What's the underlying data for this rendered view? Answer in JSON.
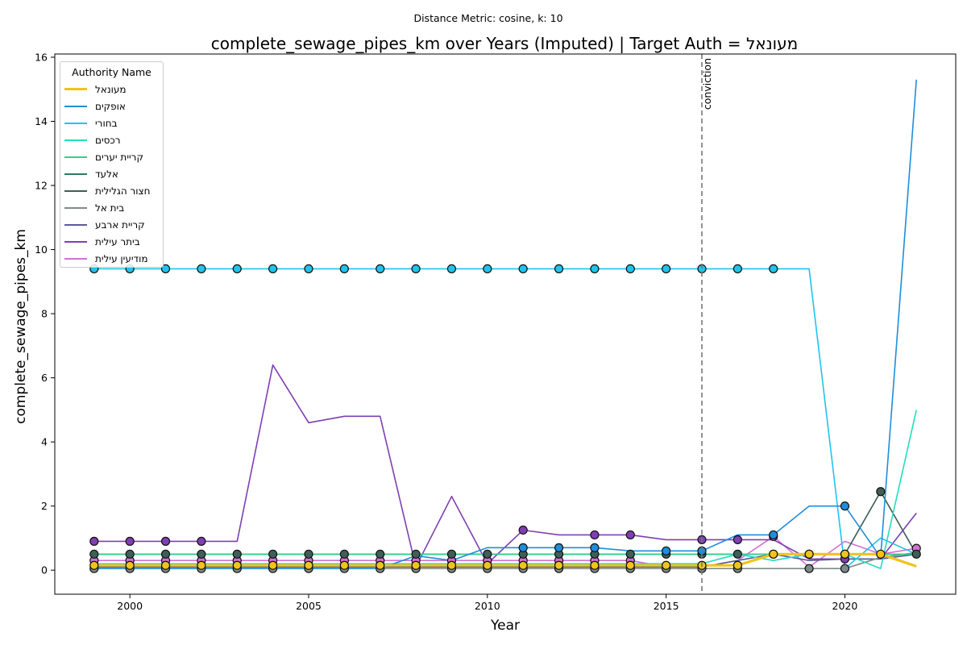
{
  "chart_data": {
    "type": "line",
    "suptitle": "Distance Metric: cosine, k: 10",
    "title": "complete_sewage_pipes_km over Years (Imputed) | Target Auth = מעונאל",
    "xlabel": "Year",
    "ylabel": "complete_sewage_pipes_km",
    "xlim": [
      1997.9,
      2023.1
    ],
    "ylim": [
      -0.75,
      16.1
    ],
    "xticks": [
      2000,
      2005,
      2010,
      2015,
      2020
    ],
    "yticks": [
      0,
      2,
      4,
      6,
      8,
      10,
      12,
      14,
      16
    ],
    "grid": false,
    "legend": {
      "title": "Authority Name",
      "placement": "upper-left"
    },
    "vline": {
      "x": 2016,
      "label": "conviction",
      "color": "#777777"
    },
    "x": [
      1999,
      2000,
      2001,
      2002,
      2003,
      2004,
      2005,
      2006,
      2007,
      2008,
      2009,
      2010,
      2011,
      2012,
      2013,
      2014,
      2015,
      2016,
      2017,
      2018,
      2019,
      2020,
      2021,
      2022
    ],
    "series": [
      {
        "name": "מעונאל",
        "color": "#f0c419",
        "width": 3.2,
        "values": [
          0.15,
          0.15,
          0.15,
          0.15,
          0.15,
          0.15,
          0.15,
          0.15,
          0.15,
          0.15,
          0.15,
          0.15,
          0.15,
          0.15,
          0.15,
          0.15,
          0.15,
          0.15,
          0.15,
          0.5,
          0.5,
          0.5,
          0.5,
          0.12
        ],
        "marked": [
          1999,
          2000,
          2001,
          2002,
          2003,
          2004,
          2005,
          2006,
          2007,
          2008,
          2009,
          2010,
          2011,
          2012,
          2013,
          2014,
          2015,
          2016,
          2017,
          2018,
          2019,
          2020,
          2021
        ]
      },
      {
        "name": "אופקים",
        "color": "#1f8ddb",
        "width": 1.6,
        "values": [
          0.05,
          0.05,
          0.05,
          0.05,
          0.05,
          0.05,
          0.05,
          0.05,
          0.05,
          0.45,
          0.3,
          0.7,
          0.7,
          0.7,
          0.7,
          0.6,
          0.6,
          0.6,
          1.1,
          1.1,
          2.0,
          2.0,
          0.4,
          15.3
        ],
        "marked": [
          2011,
          2012,
          2013,
          2015,
          2016,
          2018,
          2020
        ]
      },
      {
        "name": "בחורי",
        "color": "#1fc4ee",
        "width": 1.6,
        "values": [
          9.4,
          9.4,
          9.4,
          9.4,
          9.4,
          9.4,
          9.4,
          9.4,
          9.4,
          9.4,
          9.4,
          9.4,
          9.4,
          9.4,
          9.4,
          9.4,
          9.4,
          9.4,
          9.4,
          9.4,
          9.4,
          0.05,
          1.0,
          0.5
        ],
        "marked": [
          1999,
          2000,
          2001,
          2002,
          2003,
          2004,
          2005,
          2006,
          2007,
          2008,
          2009,
          2010,
          2011,
          2012,
          2013,
          2014,
          2015,
          2016,
          2017,
          2018
        ]
      },
      {
        "name": "רכסים",
        "color": "#22ddc0",
        "width": 1.6,
        "values": [
          0.2,
          0.2,
          0.2,
          0.2,
          0.2,
          0.2,
          0.2,
          0.2,
          0.2,
          0.2,
          0.2,
          0.2,
          0.2,
          0.2,
          0.2,
          0.2,
          0.2,
          0.2,
          0.5,
          0.3,
          0.5,
          0.5,
          0.05,
          5.0
        ],
        "marked": []
      },
      {
        "name": "קריית יערים",
        "color": "#2ed18c",
        "width": 1.6,
        "values": [
          0.5,
          0.5,
          0.5,
          0.5,
          0.5,
          0.5,
          0.5,
          0.5,
          0.5,
          0.5,
          0.5,
          0.5,
          0.5,
          0.5,
          0.5,
          0.5,
          0.5,
          0.5,
          0.5,
          0.5,
          0.5,
          0.5,
          0.5,
          0.5
        ],
        "marked": []
      },
      {
        "name": "אלעד",
        "color": "#2a7d5e",
        "width": 1.6,
        "values": [
          0.5,
          0.5,
          0.5,
          0.5,
          0.5,
          0.5,
          0.5,
          0.5,
          0.5,
          0.5,
          0.5,
          0.5,
          0.5,
          0.5,
          0.5,
          0.5,
          0.5,
          0.5,
          0.5,
          0.5,
          0.5,
          0.5,
          0.5,
          0.5
        ],
        "marked": []
      },
      {
        "name": "חצור הגלילית",
        "color": "#3e5f57",
        "width": 1.6,
        "values": [
          0.5,
          0.5,
          0.5,
          0.5,
          0.5,
          0.5,
          0.5,
          0.5,
          0.5,
          0.5,
          0.5,
          0.5,
          0.5,
          0.5,
          0.5,
          0.5,
          0.5,
          0.5,
          0.5,
          0.5,
          0.5,
          0.5,
          2.45,
          0.5
        ],
        "marked": [
          1999,
          2000,
          2001,
          2002,
          2003,
          2004,
          2005,
          2006,
          2007,
          2008,
          2009,
          2010,
          2011,
          2012,
          2013,
          2014,
          2015,
          2016,
          2017,
          2018,
          2019,
          2020,
          2021,
          2022
        ]
      },
      {
        "name": "בית אל",
        "color": "#7f8b8a",
        "width": 1.6,
        "values": [
          0.05,
          0.05,
          0.05,
          0.05,
          0.05,
          0.05,
          0.05,
          0.05,
          0.05,
          0.05,
          0.05,
          0.05,
          0.05,
          0.05,
          0.05,
          0.05,
          0.05,
          0.05,
          0.05,
          0.05,
          0.05,
          0.05,
          0.4,
          0.55
        ],
        "marked": [
          1999,
          2000,
          2001,
          2002,
          2003,
          2004,
          2005,
          2006,
          2007,
          2008,
          2009,
          2010,
          2011,
          2012,
          2013,
          2014,
          2015,
          2016,
          2017,
          2019,
          2020
        ]
      },
      {
        "name": "קריית ארבע",
        "color": "#5a5a9a",
        "width": 1.6,
        "values": [
          0.1,
          0.1,
          0.1,
          0.1,
          0.1,
          0.1,
          0.1,
          0.1,
          0.1,
          0.1,
          0.1,
          0.1,
          0.1,
          0.1,
          0.1,
          0.1,
          0.1,
          0.1,
          0.3,
          0.5,
          0.3,
          0.35,
          0.35,
          0.5
        ],
        "marked": []
      },
      {
        "name": "ביתר עילית",
        "color": "#7f3fb4",
        "width": 1.6,
        "values": [
          0.9,
          0.9,
          0.9,
          0.9,
          0.9,
          6.4,
          4.6,
          4.8,
          4.8,
          0.1,
          2.3,
          0.2,
          1.25,
          1.1,
          1.1,
          1.1,
          0.95,
          0.95,
          0.95,
          0.95,
          0.35,
          0.35,
          0.35,
          1.78
        ],
        "marked": [
          1999,
          2000,
          2001,
          2002,
          2011,
          2013,
          2014,
          2016,
          2017,
          2020
        ]
      },
      {
        "name": "מודיעין עילית",
        "color": "#d370d6",
        "width": 1.6,
        "values": [
          0.3,
          0.3,
          0.3,
          0.3,
          0.3,
          0.3,
          0.3,
          0.3,
          0.3,
          0.3,
          0.3,
          0.3,
          0.3,
          0.3,
          0.3,
          0.3,
          0.1,
          0.1,
          0.3,
          1.05,
          0.1,
          0.9,
          0.5,
          0.68
        ],
        "marked": [
          1999,
          2000,
          2001,
          2002,
          2003,
          2004,
          2005,
          2006,
          2007,
          2008,
          2009,
          2010,
          2011,
          2012,
          2013,
          2014,
          2018,
          2022
        ]
      }
    ]
  }
}
